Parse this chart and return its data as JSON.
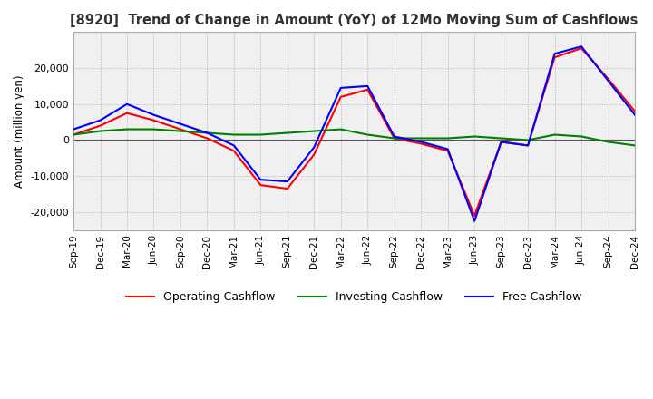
{
  "title": "[8920]  Trend of Change in Amount (YoY) of 12Mo Moving Sum of Cashflows",
  "ylabel": "Amount (million yen)",
  "x_labels": [
    "Sep-19",
    "Dec-19",
    "Mar-20",
    "Jun-20",
    "Sep-20",
    "Dec-20",
    "Mar-21",
    "Jun-21",
    "Sep-21",
    "Dec-21",
    "Mar-22",
    "Jun-22",
    "Sep-22",
    "Dec-22",
    "Mar-23",
    "Jun-23",
    "Sep-23",
    "Dec-23",
    "Mar-24",
    "Jun-24",
    "Sep-24",
    "Dec-24"
  ],
  "operating_cashflow": [
    1500,
    4000,
    7500,
    5500,
    3000,
    500,
    -3000,
    -12500,
    -13500,
    -4000,
    12000,
    14000,
    500,
    -1000,
    -3000,
    -21000,
    -500,
    -1500,
    23000,
    25500,
    17000,
    8000
  ],
  "investing_cashflow": [
    1500,
    2500,
    3000,
    3000,
    2500,
    2000,
    1500,
    1500,
    2000,
    2500,
    3000,
    1500,
    500,
    500,
    500,
    1000,
    500,
    0,
    1500,
    1000,
    -500,
    -1500
  ],
  "free_cashflow": [
    3000,
    5500,
    10000,
    7000,
    4500,
    2000,
    -1500,
    -11000,
    -11500,
    -2000,
    14500,
    15000,
    1000,
    -500,
    -2500,
    -22500,
    -500,
    -1500,
    24000,
    26000,
    16500,
    7000
  ],
  "ylim": [
    -25000,
    30000
  ],
  "yticks": [
    -20000,
    -10000,
    0,
    10000,
    20000
  ],
  "colors": {
    "operating": "#ff0000",
    "investing": "#008000",
    "free": "#0000ff"
  },
  "background_color": "#ffffff",
  "grid_color": "#b0b0b0",
  "plot_bg_color": "#f0f0f0"
}
